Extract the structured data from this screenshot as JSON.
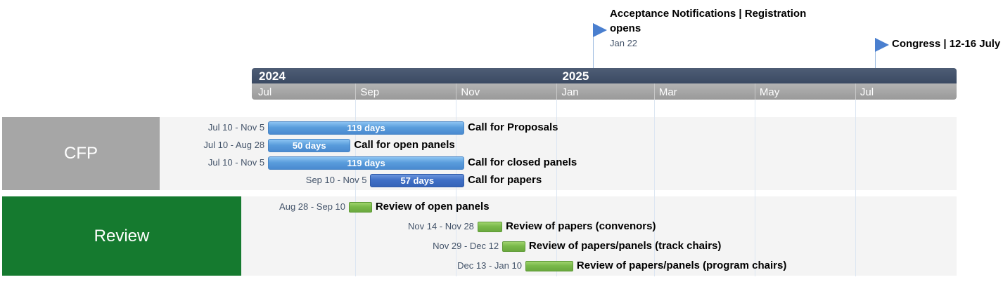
{
  "chart_data": {
    "type": "gantt",
    "axis": {
      "years": [
        {
          "label": "2024",
          "date": "2024-07-01"
        },
        {
          "label": "2025",
          "date": "2025-01-01"
        }
      ],
      "months": [
        {
          "label": "Jul",
          "date": "2024-07-01"
        },
        {
          "label": "Sep",
          "date": "2024-09-01"
        },
        {
          "label": "Nov",
          "date": "2024-11-01"
        },
        {
          "label": "Jan",
          "date": "2025-01-01"
        },
        {
          "label": "Mar",
          "date": "2025-03-01"
        },
        {
          "label": "May",
          "date": "2025-05-01"
        },
        {
          "label": "Jul",
          "date": "2025-07-01"
        }
      ],
      "range": [
        "2024-07-01",
        "2025-07-31"
      ]
    },
    "milestones": [
      {
        "title": "Acceptance Notifications | Registration opens",
        "date": "2025-01-22",
        "date_label": "Jan 22"
      },
      {
        "title": "Congress | 12-16 July",
        "date": "2025-07-12",
        "date_label": ""
      }
    ],
    "groups": [
      {
        "name": "CFP",
        "color": "#a6a6a6",
        "tasks": [
          {
            "label": "Call for Proposals",
            "start": "2024-07-10",
            "end": "2024-11-05",
            "date_label": "Jul 10 - Nov 5",
            "duration_label": "119 days",
            "color": "#5a9ddc"
          },
          {
            "label": "Call for open panels",
            "start": "2024-07-10",
            "end": "2024-08-28",
            "date_label": "Jul 10 - Aug 28",
            "duration_label": "50 days",
            "color": "#5a9ddc"
          },
          {
            "label": "Call for closed panels",
            "start": "2024-07-10",
            "end": "2024-11-05",
            "date_label": "Jul 10 - Nov 5",
            "duration_label": "119 days",
            "color": "#5a9ddc"
          },
          {
            "label": "Call for papers",
            "start": "2024-09-10",
            "end": "2024-11-05",
            "date_label": "Sep 10 - Nov 5",
            "duration_label": "57 days",
            "color": "#3f6fc6"
          }
        ]
      },
      {
        "name": "Review",
        "color": "#157a2f",
        "tasks": [
          {
            "label": "Review of open panels",
            "start": "2024-08-28",
            "end": "2024-09-10",
            "date_label": "Aug 28 - Sep 10",
            "duration_label": "",
            "color": "#79b94a"
          },
          {
            "label": "Review of papers (convenors)",
            "start": "2024-11-14",
            "end": "2024-11-28",
            "date_label": "Nov 14 - Nov 28",
            "duration_label": "",
            "color": "#79b94a"
          },
          {
            "label": "Review of papers/panels (track chairs)",
            "start": "2024-11-29",
            "end": "2024-12-12",
            "date_label": "Nov 29 - Dec 12",
            "duration_label": "",
            "color": "#79b94a"
          },
          {
            "label": "Review of papers/panels (program chairs)",
            "start": "2024-12-13",
            "end": "2025-01-10",
            "date_label": "Dec 13 - Jan 10",
            "duration_label": "",
            "color": "#79b94a"
          }
        ]
      }
    ]
  }
}
